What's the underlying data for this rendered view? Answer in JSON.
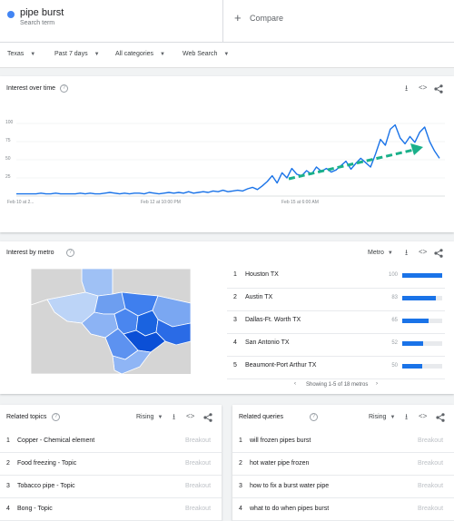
{
  "term": {
    "name": "pipe burst",
    "subtitle": "Search term"
  },
  "compare": {
    "plus": "+",
    "label": "Compare"
  },
  "filters": [
    {
      "label": "Texas"
    },
    {
      "label": "Past 7 days"
    },
    {
      "label": "All categories"
    },
    {
      "label": "Web Search"
    }
  ],
  "icons": {
    "download": "⭳",
    "embed": "<>",
    "share": "share-icon",
    "help": "?"
  },
  "interest_over_time": {
    "title": "Interest over time",
    "y_ticks": [
      "100",
      "75",
      "50",
      "25"
    ],
    "x_ticks": [
      "Feb 10 at 2...",
      "Feb 12 at 10:00 PM",
      "Feb 15 at 6:00 AM"
    ],
    "line_color": "#1a73e8",
    "arrow_color": "#1ab08a"
  },
  "chart_data": {
    "type": "line",
    "title": "Interest over time",
    "xlabel": "",
    "ylabel": "",
    "ylim": [
      0,
      100
    ],
    "x_ticks": [
      "Feb 10 at 2...",
      "Feb 12 at 10:00 PM",
      "Feb 15 at 6:00 AM"
    ],
    "series": [
      {
        "values": [
          3,
          3,
          3,
          3,
          3,
          4,
          3,
          3,
          4,
          3,
          3,
          3,
          3,
          4,
          3,
          4,
          3,
          3,
          4,
          5,
          4,
          3,
          4,
          3,
          4,
          4,
          3,
          5,
          4,
          3,
          4,
          5,
          4,
          5,
          4,
          6,
          4,
          5,
          6,
          5,
          7,
          6,
          8,
          6,
          7,
          8,
          7,
          10,
          12,
          9,
          14,
          20,
          28,
          18,
          32,
          25,
          38,
          30,
          28,
          35,
          30,
          40,
          34,
          38,
          33,
          36,
          42,
          48,
          37,
          45,
          52,
          46,
          40,
          58,
          78,
          70,
          92,
          98,
          80,
          72,
          82,
          74,
          88,
          95,
          75,
          62,
          52
        ]
      }
    ]
  },
  "metro": {
    "title": "Interest by metro",
    "dropdown": "Metro",
    "rows": [
      {
        "rank": "1",
        "name": "Houston TX",
        "value": "100",
        "fraction": 1.0
      },
      {
        "rank": "2",
        "name": "Austin TX",
        "value": "83",
        "fraction": 0.83
      },
      {
        "rank": "3",
        "name": "Dallas-Ft. Worth TX",
        "value": "65",
        "fraction": 0.65
      },
      {
        "rank": "4",
        "name": "San Antonio TX",
        "value": "52",
        "fraction": 0.52
      },
      {
        "rank": "5",
        "name": "Beaumont-Port Arthur TX",
        "value": "50",
        "fraction": 0.5
      }
    ],
    "pager": "Showing 1-5 of 18 metros",
    "prev": "‹",
    "next": "›"
  },
  "related_topics": {
    "title": "Related topics",
    "dropdown": "Rising",
    "rows": [
      {
        "rank": "1",
        "name": "Copper - Chemical element",
        "value": "Breakout"
      },
      {
        "rank": "2",
        "name": "Food freezing - Topic",
        "value": "Breakout"
      },
      {
        "rank": "3",
        "name": "Tobacco pipe - Topic",
        "value": "Breakout"
      },
      {
        "rank": "4",
        "name": "Bong - Topic",
        "value": "Breakout"
      }
    ]
  },
  "related_queries": {
    "title": "Related queries",
    "dropdown": "Rising",
    "rows": [
      {
        "rank": "1",
        "name": "will frozen pipes burst",
        "value": "Breakout"
      },
      {
        "rank": "2",
        "name": "hot water pipe frozen",
        "value": "Breakout"
      },
      {
        "rank": "3",
        "name": "how to fix a burst water pipe",
        "value": "Breakout"
      },
      {
        "rank": "4",
        "name": "what to do when pipes burst",
        "value": "Breakout"
      }
    ]
  }
}
